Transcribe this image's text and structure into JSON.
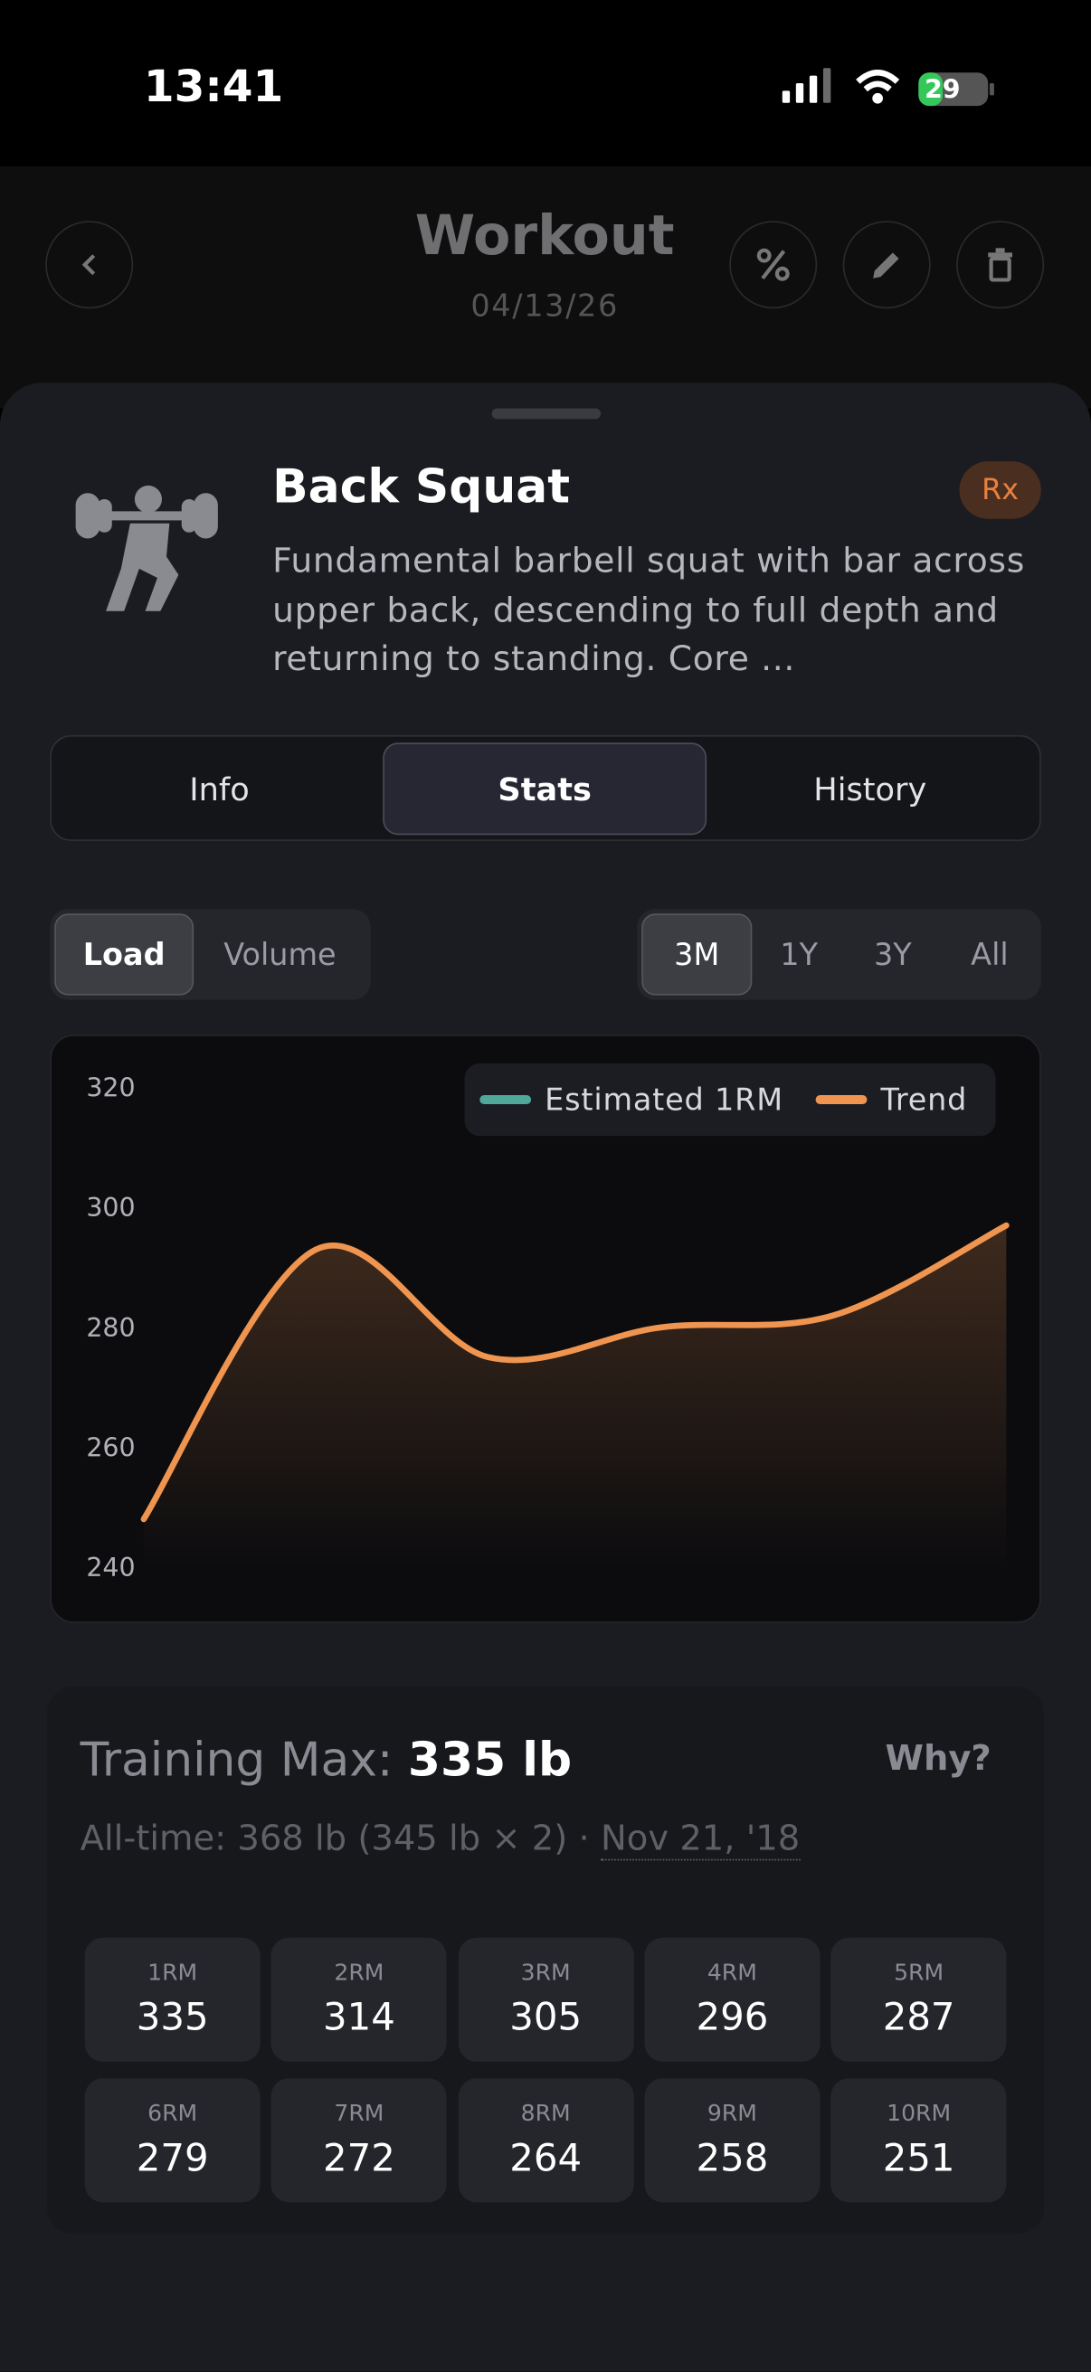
{
  "status": {
    "time": "13:41",
    "battery": "29"
  },
  "header": {
    "title": "Workout",
    "date": "04/13/26"
  },
  "exercise": {
    "name": "Back Squat",
    "badge": "Rx",
    "description": "Fundamental barbell squat with bar across upper back, descending to full depth and returning to standing. Core ..."
  },
  "tabs": [
    "Info",
    "Stats",
    "History"
  ],
  "metric_toggle": [
    "Load",
    "Volume"
  ],
  "range_toggle": [
    "3M",
    "1Y",
    "3Y",
    "All"
  ],
  "chart_data": {
    "type": "line",
    "series": [
      {
        "name": "Estimated 1RM",
        "color": "#4fa89a",
        "values": [
          null,
          null,
          null,
          null,
          null,
          null
        ]
      },
      {
        "name": "Trend",
        "color": "#f0954f",
        "values": [
          248,
          293,
          275,
          280,
          282,
          297
        ]
      }
    ],
    "ylim": [
      240,
      320
    ],
    "yticks": [
      240,
      260,
      280,
      300,
      320
    ],
    "area": true
  },
  "training_max": {
    "label": "Training Max:",
    "value": "335 lb",
    "why": "Why?",
    "all_time": "All-time: 368 lb (345 lb × 2) ·",
    "date": "Nov 21, '18"
  },
  "rep_maxes": [
    {
      "label": "1RM",
      "value": 335
    },
    {
      "label": "2RM",
      "value": 314
    },
    {
      "label": "3RM",
      "value": 305
    },
    {
      "label": "4RM",
      "value": 296
    },
    {
      "label": "5RM",
      "value": 287
    },
    {
      "label": "6RM",
      "value": 279
    },
    {
      "label": "7RM",
      "value": 272
    },
    {
      "label": "8RM",
      "value": 264
    },
    {
      "label": "9RM",
      "value": 258
    },
    {
      "label": "10RM",
      "value": 251
    }
  ]
}
